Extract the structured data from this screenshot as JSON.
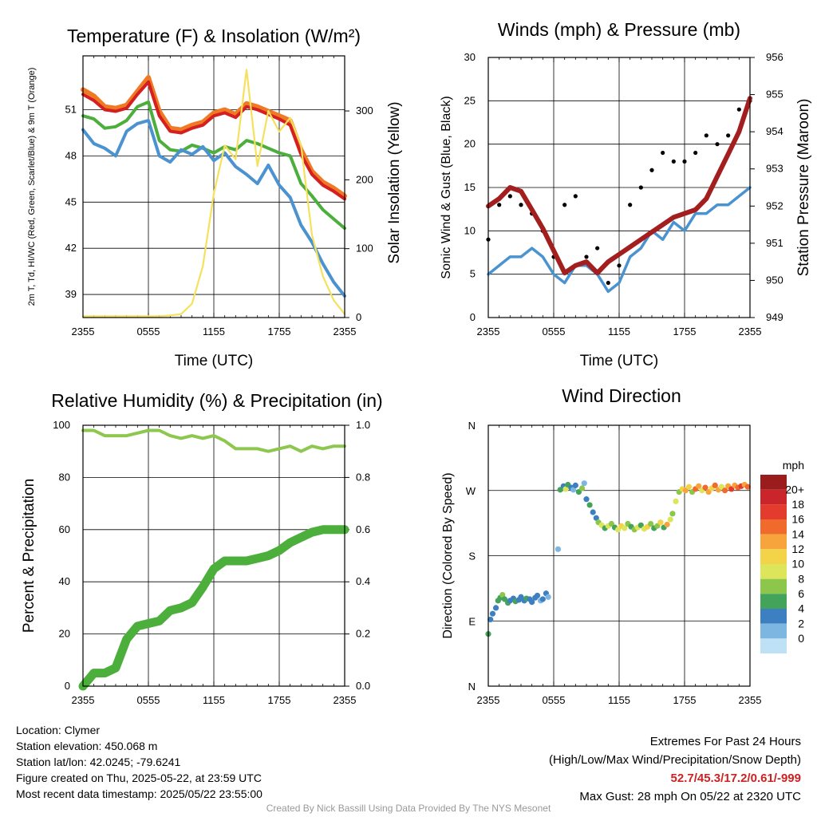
{
  "colors": {
    "temperature": "#d42020",
    "temp_9m": "#f07a24",
    "heat_index": "#4caf3c",
    "dewpoint": "#4b93d0",
    "insolation": "#f5e15c",
    "wind": "#4b93d0",
    "gust": "#000000",
    "pressure": "#a31f1f",
    "rh": "#8dc74f",
    "precip": "#4caf3c"
  },
  "chart_data": [
    {
      "id": "temp",
      "type": "line",
      "title": "Temperature (F) & Insolation (W/m²)",
      "xlabel": "Time (UTC)",
      "ylabel": "2m T, Td, HI/WC (Red, Green, Scarlet/Blue) & 9m T (Orange)",
      "ylabel_right": "Solar Insolation (Yellow)",
      "x_ticks": [
        "2355",
        "0555",
        "1155",
        "1755",
        "2355"
      ],
      "y_ticks": [
        39,
        42,
        45,
        48,
        51
      ],
      "y_ticks_right": [
        0,
        100,
        200,
        300
      ],
      "ylim": [
        37.5,
        54.5
      ],
      "ylim_right": [
        0,
        380
      ],
      "x": [
        0,
        1,
        2,
        3,
        4,
        5,
        6,
        7,
        8,
        9,
        10,
        11,
        12,
        13,
        14,
        15,
        16,
        17,
        18,
        19,
        20,
        21,
        22,
        23,
        24
      ],
      "series": [
        {
          "name": "9m T",
          "axis": "left",
          "values": [
            52.3,
            51.9,
            51.2,
            51.1,
            51.3,
            52.2,
            53.1,
            50.9,
            49.8,
            49.7,
            50.0,
            50.2,
            50.8,
            51.0,
            50.7,
            51.4,
            51.2,
            50.9,
            50.6,
            50.3,
            48.4,
            47.0,
            46.3,
            45.9,
            45.4
          ]
        },
        {
          "name": "2m T",
          "axis": "left",
          "values": [
            52.0,
            51.6,
            51.0,
            50.9,
            51.1,
            52.0,
            52.8,
            50.6,
            49.6,
            49.5,
            49.8,
            50.0,
            50.6,
            50.8,
            50.5,
            51.2,
            51.0,
            50.7,
            50.4,
            50.0,
            48.1,
            46.8,
            46.1,
            45.7,
            45.2
          ]
        },
        {
          "name": "Heat Index / Wind Chill",
          "axis": "left",
          "values": [
            50.6,
            50.4,
            49.8,
            49.9,
            50.3,
            51.2,
            51.5,
            49.0,
            48.4,
            48.3,
            48.7,
            48.5,
            48.2,
            48.6,
            48.4,
            49.0,
            48.8,
            48.5,
            48.2,
            48.0,
            46.2,
            45.4,
            44.5,
            43.9,
            43.3
          ]
        },
        {
          "name": "Dewpoint",
          "axis": "left",
          "values": [
            49.7,
            48.8,
            48.5,
            48.0,
            49.6,
            50.1,
            50.3,
            48.0,
            47.6,
            48.4,
            48.1,
            48.6,
            47.7,
            48.2,
            47.3,
            46.8,
            46.2,
            47.4,
            46.1,
            45.3,
            43.5,
            42.4,
            41.0,
            39.8,
            38.9
          ]
        },
        {
          "name": "Solar Insolation",
          "axis": "right",
          "values": [
            2,
            2,
            2,
            2,
            2,
            2,
            2,
            2,
            3,
            5,
            20,
            75,
            180,
            250,
            230,
            360,
            220,
            300,
            270,
            290,
            250,
            120,
            60,
            25,
            5
          ]
        }
      ]
    },
    {
      "id": "wind",
      "type": "line",
      "title": "Winds (mph) & Pressure (mb)",
      "xlabel": "Time (UTC)",
      "ylabel": "Sonic Wind & Gust (Blue, Black)",
      "ylabel_right": "Station Pressure (Maroon)",
      "x_ticks": [
        "2355",
        "0555",
        "1155",
        "1755",
        "2355"
      ],
      "y_ticks": [
        0,
        5,
        10,
        15,
        20,
        25,
        30
      ],
      "y_ticks_right": [
        949,
        950,
        951,
        952,
        953,
        954,
        955,
        956
      ],
      "ylim": [
        0,
        30
      ],
      "ylim_right": [
        949,
        956
      ],
      "x": [
        0,
        1,
        2,
        3,
        4,
        5,
        6,
        7,
        8,
        9,
        10,
        11,
        12,
        13,
        14,
        15,
        16,
        17,
        18,
        19,
        20,
        21,
        22,
        23,
        24
      ],
      "series": [
        {
          "name": "Sonic Wind",
          "axis": "left",
          "values": [
            5,
            6,
            7,
            7,
            8,
            7,
            5,
            4,
            6,
            6,
            5,
            3,
            4,
            7,
            8,
            10,
            9,
            11,
            10,
            12,
            12,
            13,
            13,
            14,
            15
          ]
        },
        {
          "name": "Gust",
          "axis": "left",
          "values": [
            9,
            13,
            14,
            13,
            12,
            10,
            7,
            13,
            14,
            7,
            8,
            4,
            6,
            13,
            15,
            17,
            19,
            18,
            18,
            19,
            21,
            20,
            21,
            24,
            25
          ]
        },
        {
          "name": "Station Pressure",
          "axis": "right",
          "values": [
            952.0,
            952.2,
            952.5,
            952.4,
            951.9,
            951.4,
            950.8,
            950.2,
            950.4,
            950.5,
            950.2,
            950.5,
            950.7,
            950.9,
            951.1,
            951.3,
            951.5,
            951.7,
            951.8,
            951.9,
            952.2,
            952.8,
            953.4,
            954.0,
            954.9
          ]
        }
      ]
    },
    {
      "id": "rh",
      "type": "line",
      "title": "Relative Humidity (%) & Precipitation (in)",
      "xlabel": "",
      "ylabel": "Percent & Precipitation",
      "ylabel_right": "",
      "x_ticks": [
        "2355",
        "0555",
        "1155",
        "1755",
        "2355"
      ],
      "y_ticks": [
        0,
        20,
        40,
        60,
        80,
        100
      ],
      "y_ticks_right": [
        "0.0",
        "0.2",
        "0.4",
        "0.6",
        "0.8",
        "1.0"
      ],
      "ylim": [
        0,
        100
      ],
      "ylim_right": [
        0,
        1.0
      ],
      "x": [
        0,
        1,
        2,
        3,
        4,
        5,
        6,
        7,
        8,
        9,
        10,
        11,
        12,
        13,
        14,
        15,
        16,
        17,
        18,
        19,
        20,
        21,
        22,
        23,
        24
      ],
      "series": [
        {
          "name": "Relative Humidity",
          "axis": "left",
          "values": [
            98,
            98,
            96,
            96,
            96,
            97,
            98,
            98,
            96,
            95,
            96,
            95,
            96,
            94,
            91,
            91,
            91,
            90,
            91,
            92,
            90,
            92,
            91,
            92,
            92
          ]
        },
        {
          "name": "Precipitation",
          "axis": "right",
          "values": [
            0.0,
            0.05,
            0.05,
            0.07,
            0.18,
            0.23,
            0.24,
            0.25,
            0.29,
            0.3,
            0.32,
            0.38,
            0.45,
            0.48,
            0.48,
            0.48,
            0.49,
            0.5,
            0.52,
            0.55,
            0.57,
            0.59,
            0.6,
            0.6,
            0.6
          ]
        }
      ]
    },
    {
      "id": "dir",
      "type": "scatter",
      "title": "Wind Direction",
      "xlabel": "",
      "ylabel": "Direction (Colored By Speed)",
      "x_ticks": [
        "2355",
        "0555",
        "1155",
        "1755",
        "2355"
      ],
      "y_ticks": [
        "N",
        "E",
        "S",
        "W",
        "N"
      ],
      "ylim": [
        0,
        360
      ],
      "colorbar": {
        "label": "mph",
        "labels": [
          "20+",
          "18",
          "16",
          "14",
          "12",
          "10",
          "8",
          "6",
          "4",
          "2",
          "0"
        ],
        "colors": [
          "#9b1c1c",
          "#c9252a",
          "#e33b2e",
          "#f06a2c",
          "#f7a43c",
          "#f3d348",
          "#dde65a",
          "#8cc64a",
          "#44a35b",
          "#3d80c1",
          "#7cb6e1",
          "#bfe1f5"
        ]
      },
      "points": [
        {
          "t": 0.0,
          "d": 72,
          "s": 6
        },
        {
          "t": 0.2,
          "d": 92,
          "s": 4
        },
        {
          "t": 0.4,
          "d": 100,
          "s": 4
        },
        {
          "t": 0.7,
          "d": 108,
          "s": 4
        },
        {
          "t": 0.9,
          "d": 118,
          "s": 6
        },
        {
          "t": 1.1,
          "d": 122,
          "s": 7
        },
        {
          "t": 1.3,
          "d": 126,
          "s": 8
        },
        {
          "t": 1.5,
          "d": 120,
          "s": 7
        },
        {
          "t": 1.8,
          "d": 115,
          "s": 6
        },
        {
          "t": 2.0,
          "d": 118,
          "s": 5
        },
        {
          "t": 2.3,
          "d": 121,
          "s": 5
        },
        {
          "t": 2.5,
          "d": 117,
          "s": 6
        },
        {
          "t": 2.8,
          "d": 119,
          "s": 4
        },
        {
          "t": 3.0,
          "d": 123,
          "s": 5
        },
        {
          "t": 3.3,
          "d": 118,
          "s": 4
        },
        {
          "t": 3.5,
          "d": 121,
          "s": 6
        },
        {
          "t": 3.8,
          "d": 120,
          "s": 5
        },
        {
          "t": 4.0,
          "d": 116,
          "s": 4
        },
        {
          "t": 4.3,
          "d": 122,
          "s": 5
        },
        {
          "t": 4.5,
          "d": 125,
          "s": 4
        },
        {
          "t": 4.8,
          "d": 118,
          "s": 3
        },
        {
          "t": 5.0,
          "d": 120,
          "s": 4
        },
        {
          "t": 5.3,
          "d": 128,
          "s": 4
        },
        {
          "t": 5.5,
          "d": 123,
          "s": 2
        },
        {
          "t": 6.4,
          "d": 189,
          "s": 2
        },
        {
          "t": 6.6,
          "d": 271,
          "s": 6
        },
        {
          "t": 6.9,
          "d": 276,
          "s": 4
        },
        {
          "t": 7.1,
          "d": 272,
          "s": 10
        },
        {
          "t": 7.3,
          "d": 278,
          "s": 6
        },
        {
          "t": 7.6,
          "d": 274,
          "s": 4
        },
        {
          "t": 7.8,
          "d": 271,
          "s": 2
        },
        {
          "t": 8.0,
          "d": 277,
          "s": 4
        },
        {
          "t": 8.3,
          "d": 268,
          "s": 6
        },
        {
          "t": 8.6,
          "d": 273,
          "s": 8
        },
        {
          "t": 8.8,
          "d": 280,
          "s": 2
        },
        {
          "t": 9.0,
          "d": 258,
          "s": 4
        },
        {
          "t": 9.3,
          "d": 250,
          "s": 6
        },
        {
          "t": 9.6,
          "d": 240,
          "s": 4
        },
        {
          "t": 9.9,
          "d": 232,
          "s": 5
        },
        {
          "t": 10.1,
          "d": 226,
          "s": 8
        },
        {
          "t": 10.4,
          "d": 222,
          "s": 10
        },
        {
          "t": 10.7,
          "d": 218,
          "s": 6
        },
        {
          "t": 11.0,
          "d": 221,
          "s": 10
        },
        {
          "t": 11.3,
          "d": 224,
          "s": 8
        },
        {
          "t": 11.6,
          "d": 219,
          "s": 7
        },
        {
          "t": 11.9,
          "d": 216,
          "s": 10
        },
        {
          "t": 12.2,
          "d": 221,
          "s": 12
        },
        {
          "t": 12.5,
          "d": 218,
          "s": 10
        },
        {
          "t": 12.8,
          "d": 224,
          "s": 8
        },
        {
          "t": 13.1,
          "d": 220,
          "s": 6
        },
        {
          "t": 13.4,
          "d": 216,
          "s": 9
        },
        {
          "t": 13.7,
          "d": 219,
          "s": 11
        },
        {
          "t": 14.0,
          "d": 222,
          "s": 7
        },
        {
          "t": 14.3,
          "d": 217,
          "s": 10
        },
        {
          "t": 14.6,
          "d": 220,
          "s": 12
        },
        {
          "t": 14.9,
          "d": 224,
          "s": 8
        },
        {
          "t": 15.2,
          "d": 218,
          "s": 6
        },
        {
          "t": 15.5,
          "d": 221,
          "s": 9
        },
        {
          "t": 15.8,
          "d": 226,
          "s": 13
        },
        {
          "t": 16.1,
          "d": 219,
          "s": 6
        },
        {
          "t": 16.4,
          "d": 223,
          "s": 14
        },
        {
          "t": 16.7,
          "d": 230,
          "s": 10
        },
        {
          "t": 16.9,
          "d": 238,
          "s": 9
        },
        {
          "t": 17.2,
          "d": 255,
          "s": 10
        },
        {
          "t": 17.5,
          "d": 268,
          "s": 9
        },
        {
          "t": 17.8,
          "d": 272,
          "s": 12
        },
        {
          "t": 18.1,
          "d": 270,
          "s": 14
        },
        {
          "t": 18.4,
          "d": 275,
          "s": 12
        },
        {
          "t": 18.7,
          "d": 268,
          "s": 8
        },
        {
          "t": 19.0,
          "d": 272,
          "s": 16
        },
        {
          "t": 19.3,
          "d": 276,
          "s": 14
        },
        {
          "t": 19.6,
          "d": 270,
          "s": 10
        },
        {
          "t": 19.9,
          "d": 274,
          "s": 16
        },
        {
          "t": 20.2,
          "d": 268,
          "s": 14
        },
        {
          "t": 20.5,
          "d": 273,
          "s": 12
        },
        {
          "t": 20.8,
          "d": 277,
          "s": 16
        },
        {
          "t": 21.1,
          "d": 271,
          "s": 14
        },
        {
          "t": 21.4,
          "d": 275,
          "s": 10
        },
        {
          "t": 21.7,
          "d": 270,
          "s": 16
        },
        {
          "t": 22.0,
          "d": 276,
          "s": 14
        },
        {
          "t": 22.3,
          "d": 272,
          "s": 18
        },
        {
          "t": 22.6,
          "d": 277,
          "s": 14
        },
        {
          "t": 22.9,
          "d": 274,
          "s": 16
        },
        {
          "t": 23.2,
          "d": 276,
          "s": 18
        },
        {
          "t": 23.5,
          "d": 278,
          "s": 14
        },
        {
          "t": 23.8,
          "d": 275,
          "s": 16
        }
      ]
    }
  ],
  "info": {
    "location": "Location: Clymer",
    "elevation": "Station elevation: 450.068 m",
    "latlon": "Station lat/lon: 42.0245; -79.6241",
    "created": "Figure created on Thu, 2025-05-22, at 23:59 UTC",
    "recent": "Most recent data timestamp: 2025/05/22 23:55:00"
  },
  "extremes": {
    "title": "Extremes For Past 24 Hours",
    "subtitle": "(High/Low/Max Wind/Precipitation/Snow Depth)",
    "values": "52.7/45.3/17.2/0.61/-999",
    "max_gust": "Max Gust: 28 mph On 05/22 at 2320 UTC"
  },
  "credit": "Created By Nick Bassill Using Data Provided By The NYS Mesonet"
}
